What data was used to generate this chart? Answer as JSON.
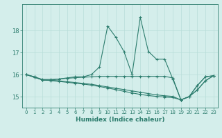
{
  "xlabel": "Humidex (Indice chaleur)",
  "x": [
    0,
    1,
    2,
    3,
    4,
    5,
    6,
    7,
    8,
    9,
    10,
    11,
    12,
    13,
    14,
    15,
    16,
    17,
    18,
    19,
    20,
    21,
    22,
    23
  ],
  "line1": [
    16.0,
    15.9,
    15.75,
    15.75,
    15.8,
    15.85,
    15.9,
    15.9,
    16.0,
    16.35,
    18.2,
    17.7,
    17.05,
    16.0,
    18.6,
    17.05,
    16.7,
    16.7,
    15.8,
    14.85,
    15.0,
    15.5,
    15.9,
    15.95
  ],
  "line2": [
    16.0,
    15.9,
    15.78,
    15.78,
    15.8,
    15.83,
    15.86,
    15.88,
    15.9,
    15.92,
    15.92,
    15.92,
    15.92,
    15.92,
    15.92,
    15.92,
    15.92,
    15.92,
    15.85,
    14.85,
    15.0,
    15.5,
    15.9,
    15.95
  ],
  "line3": [
    16.0,
    15.88,
    15.76,
    15.74,
    15.72,
    15.68,
    15.64,
    15.6,
    15.56,
    15.5,
    15.44,
    15.38,
    15.32,
    15.26,
    15.2,
    15.14,
    15.08,
    15.04,
    15.01,
    14.85,
    15.0,
    15.3,
    15.72,
    15.95
  ],
  "line4": [
    16.0,
    15.88,
    15.76,
    15.73,
    15.69,
    15.65,
    15.61,
    15.57,
    15.52,
    15.46,
    15.39,
    15.32,
    15.24,
    15.17,
    15.1,
    15.05,
    15.01,
    14.98,
    14.96,
    14.85,
    15.0,
    15.3,
    15.72,
    15.95
  ],
  "line_color": "#2d7d6e",
  "bg_color": "#d4eeeb",
  "grid_color": "#b8ddd9",
  "ylim": [
    14.5,
    19.2
  ],
  "yticks": [
    15,
    16,
    17,
    18
  ],
  "xticks": [
    0,
    1,
    2,
    3,
    4,
    5,
    6,
    7,
    8,
    9,
    10,
    11,
    12,
    13,
    14,
    15,
    16,
    17,
    18,
    19,
    20,
    21,
    22,
    23
  ]
}
